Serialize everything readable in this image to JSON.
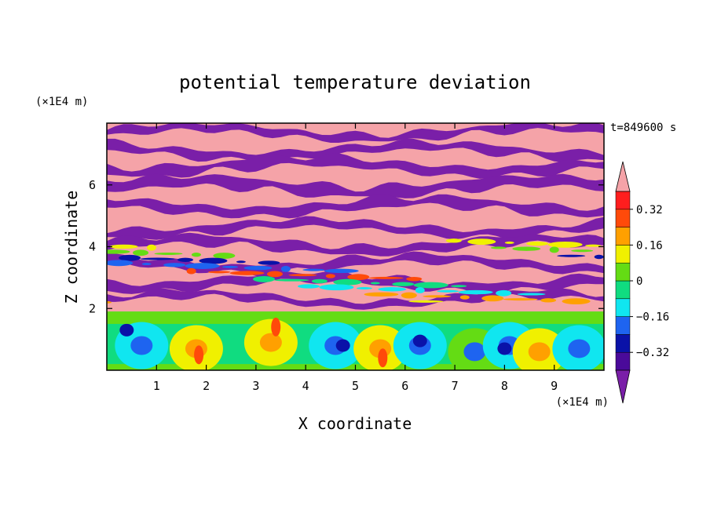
{
  "chart_data": {
    "type": "heatmap",
    "title": "potential temperature deviation",
    "xlabel": "X coordinate",
    "ylabel": "Z coordinate",
    "x_unit": "(×1E4 m)",
    "y_unit": "(×1E4 m)",
    "time_label": "t=849600 s",
    "xlim": [
      0,
      10
    ],
    "ylim": [
      0,
      8
    ],
    "x_ticks": [
      1,
      2,
      3,
      4,
      5,
      6,
      7,
      8,
      9
    ],
    "y_ticks": [
      2,
      4,
      6
    ],
    "x_tick_labels": [
      "1",
      "2",
      "3",
      "4",
      "5",
      "6",
      "7",
      "8",
      "9"
    ],
    "y_tick_labels": [
      "2",
      "4",
      "6"
    ],
    "colorbar": {
      "levels": [
        -0.4,
        -0.32,
        -0.24,
        -0.16,
        -0.08,
        0,
        0.08,
        0.16,
        0.24,
        0.32,
        0.4
      ],
      "tick_values": [
        0.32,
        0.16,
        0,
        -0.16,
        -0.32
      ],
      "tick_labels": [
        "0.32",
        "0.16",
        "0",
        "−0.16",
        "−0.32"
      ],
      "colors": [
        "#7a1fa8",
        "#4a0a9a",
        "#0a12a8",
        "#1e64f0",
        "#10e6f0",
        "#10dc80",
        "#64dc14",
        "#f0f000",
        "#ffa000",
        "#ff4a0a",
        "#ff1e1e",
        "#f5a3a8"
      ],
      "extend": "both"
    },
    "regions": {
      "upper_layer": {
        "z_range": [
          1.9,
          8
        ],
        "dominant_values": [
          "> 0.4",
          "< -0.4"
        ]
      },
      "boundary_layer": {
        "z_range": [
          0,
          1.9
        ],
        "dominant_values": [
          "-0.16 to 0.24"
        ]
      }
    }
  }
}
